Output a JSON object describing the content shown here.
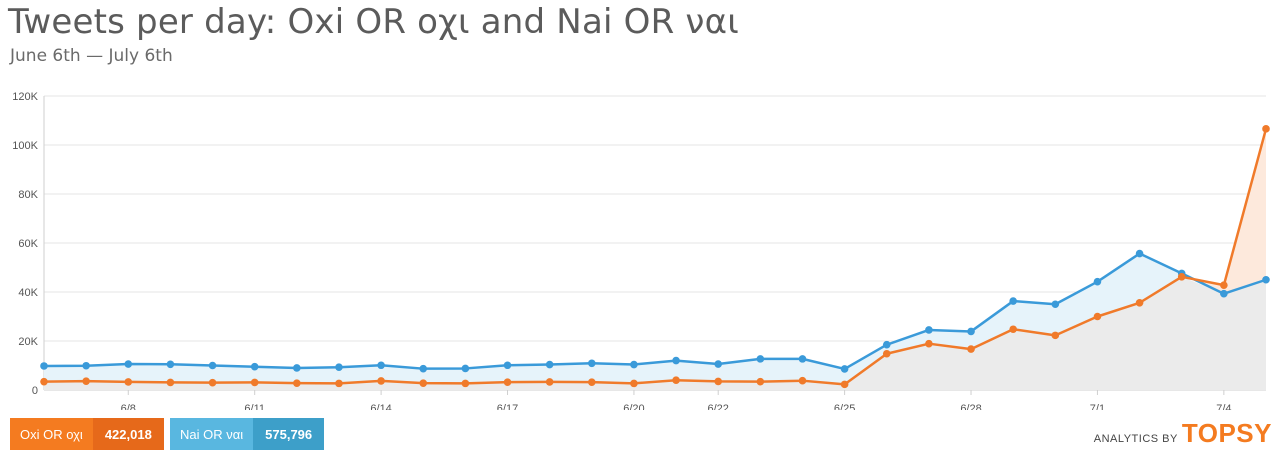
{
  "title": "Tweets per day: Oxi OR οχι and Nai OR ναι",
  "subtitle": "June 6th — July 6th",
  "legend": [
    {
      "name": "Oxi OR οχι",
      "count": "422,018",
      "color": "#f47b20"
    },
    {
      "name": "Nai OR ναι",
      "count": "575,796",
      "color": "#59b7e0"
    }
  ],
  "brand": {
    "prefix": "ANALYTICS BY",
    "logo": "TOPSY"
  },
  "chart_data": {
    "type": "area",
    "x": [
      "6/6",
      "6/7",
      "6/8",
      "6/9",
      "6/10",
      "6/11",
      "6/12",
      "6/13",
      "6/14",
      "6/15",
      "6/16",
      "6/17",
      "6/18",
      "6/19",
      "6/20",
      "6/21",
      "6/22",
      "6/23",
      "6/24",
      "6/25",
      "6/26",
      "6/27",
      "6/28",
      "6/29",
      "6/30",
      "7/1",
      "7/2",
      "7/3",
      "7/4",
      "7/5"
    ],
    "x_tick_labels": [
      "6/8",
      "6/11",
      "6/14",
      "6/17",
      "6/20",
      "6/22",
      "6/25",
      "6/28",
      "7/1",
      "7/4"
    ],
    "y_tick_labels": [
      "0",
      "20K",
      "40K",
      "60K",
      "80K",
      "100K",
      "120K"
    ],
    "ylim": [
      0,
      120000
    ],
    "grid": true,
    "series": [
      {
        "name": "Nai OR ναι",
        "color": "#3a9ad9",
        "values": [
          9800,
          9900,
          10600,
          10500,
          10000,
          9500,
          9000,
          9300,
          10100,
          8700,
          8800,
          10100,
          10400,
          10900,
          10400,
          12000,
          10600,
          12700,
          12700,
          8600,
          18500,
          24500,
          23900,
          36300,
          35000,
          44200,
          55700,
          47600,
          39300,
          45000
        ]
      },
      {
        "name": "Oxi OR οχι",
        "color": "#f07a2a",
        "values": [
          3400,
          3600,
          3300,
          3100,
          3000,
          3100,
          2800,
          2700,
          3700,
          2800,
          2700,
          3200,
          3300,
          3200,
          2700,
          4000,
          3500,
          3400,
          3800,
          2300,
          14800,
          18900,
          16700,
          24800,
          22300,
          30000,
          35600,
          46200,
          42800,
          106600
        ]
      }
    ]
  }
}
